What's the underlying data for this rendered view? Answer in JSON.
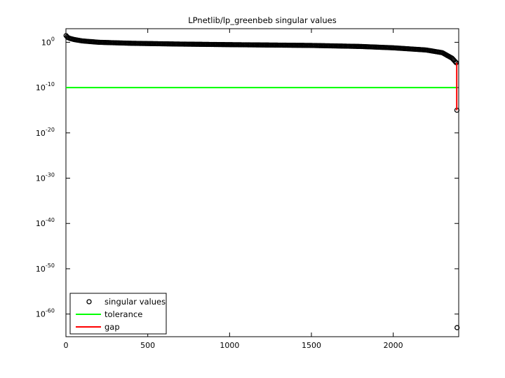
{
  "chart_data": {
    "type": "line",
    "title": "LPnetlib/lp_greenbeb singular values",
    "xlabel": "",
    "ylabel": "",
    "xlim": [
      0,
      2400
    ],
    "ylim": [
      1e-65,
      1000.0
    ],
    "yscale": "log",
    "grid": false,
    "legend_position": "bottom-left",
    "x_ticks": [
      {
        "value": 0,
        "label": "0"
      },
      {
        "value": 500,
        "label": "500"
      },
      {
        "value": 1000,
        "label": "1000"
      },
      {
        "value": 1500,
        "label": "1500"
      },
      {
        "value": 2000,
        "label": "2000"
      }
    ],
    "y_ticks": [
      {
        "exp": 0,
        "base": "10",
        "sup": "0"
      },
      {
        "exp": -10,
        "base": "10",
        "sup": "-10"
      },
      {
        "exp": -20,
        "base": "10",
        "sup": "-20"
      },
      {
        "exp": -30,
        "base": "10",
        "sup": "-30"
      },
      {
        "exp": -40,
        "base": "10",
        "sup": "-40"
      },
      {
        "exp": -50,
        "base": "10",
        "sup": "-50"
      },
      {
        "exp": -60,
        "base": "10",
        "sup": "-60"
      }
    ],
    "series": [
      {
        "name": "singular values",
        "color": "#000000",
        "marker": "circle",
        "line": "none",
        "points": [
          {
            "x": 1,
            "y": 30
          },
          {
            "x": 10,
            "y": 12
          },
          {
            "x": 25,
            "y": 7
          },
          {
            "x": 50,
            "y": 4
          },
          {
            "x": 100,
            "y": 2
          },
          {
            "x": 200,
            "y": 1
          },
          {
            "x": 400,
            "y": 0.6
          },
          {
            "x": 700,
            "y": 0.4
          },
          {
            "x": 1000,
            "y": 0.3
          },
          {
            "x": 1500,
            "y": 0.2
          },
          {
            "x": 1800,
            "y": 0.12
          },
          {
            "x": 2000,
            "y": 0.06
          },
          {
            "x": 2200,
            "y": 0.02
          },
          {
            "x": 2300,
            "y": 0.005
          },
          {
            "x": 2360,
            "y": 0.0003
          },
          {
            "x": 2385,
            "y": 3e-05
          },
          {
            "x": 2389,
            "y": 1e-15
          },
          {
            "x": 2390,
            "y": 1e-63
          }
        ]
      },
      {
        "name": "tolerance",
        "color": "#00ff00",
        "y": 1e-10
      },
      {
        "name": "gap",
        "color": "#ff0000",
        "x": 2388,
        "y_from": 3e-05,
        "y_to": 1e-15
      }
    ],
    "legend": [
      {
        "label": "singular values",
        "color": "#000000",
        "kind": "marker"
      },
      {
        "label": "tolerance",
        "color": "#00ff00",
        "kind": "line"
      },
      {
        "label": "gap",
        "color": "#ff0000",
        "kind": "line"
      }
    ]
  }
}
